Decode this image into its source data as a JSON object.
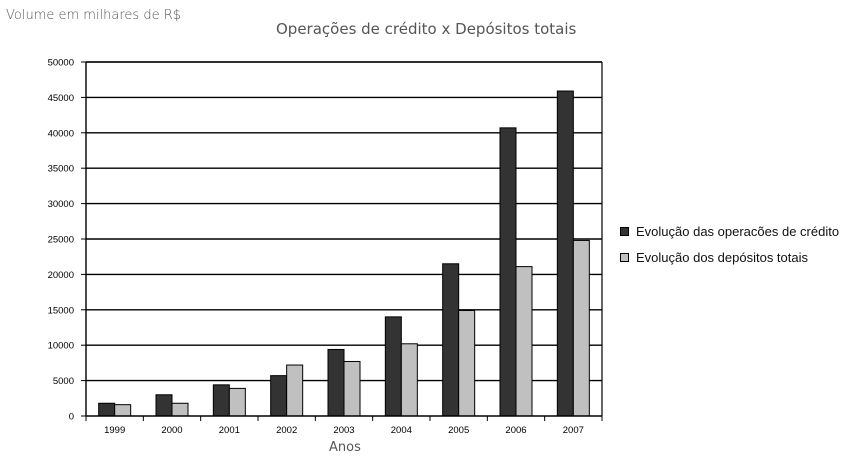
{
  "chart_data": {
    "type": "bar",
    "title": "Operações de crédito x Depósitos totais",
    "ylabel": "Volume em milhares de R$",
    "xlabel": "Anos",
    "categories": [
      "1999",
      "2000",
      "2001",
      "2002",
      "2003",
      "2004",
      "2005",
      "2006",
      "2007"
    ],
    "yticks": [
      "0",
      "5000",
      "10000",
      "15000",
      "20000",
      "25000",
      "30000",
      "35000",
      "40000",
      "45000",
      "50000"
    ],
    "ylim": [
      0,
      50000
    ],
    "grid": true,
    "legend_position": "right",
    "series": [
      {
        "name": "Evolução das operacões de crédito",
        "color": "#333333",
        "values": [
          1800,
          3000,
          4400,
          5700,
          9400,
          14000,
          21500,
          40700,
          45900
        ]
      },
      {
        "name": "Evolução dos depósitos totais",
        "color": "#c0c0c0",
        "values": [
          1600,
          1800,
          3900,
          7200,
          7700,
          10200,
          14900,
          21100,
          24800
        ]
      }
    ]
  }
}
